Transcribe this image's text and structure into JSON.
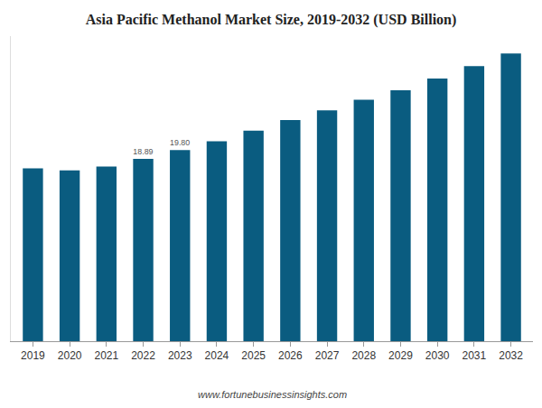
{
  "chart_data": {
    "type": "bar",
    "title": "Asia Pacific Methanol Market Size, 2019-2032 (USD Billion)",
    "categories": [
      "2019",
      "2020",
      "2021",
      "2022",
      "2023",
      "2024",
      "2025",
      "2026",
      "2027",
      "2028",
      "2029",
      "2030",
      "2031",
      "2032"
    ],
    "values": [
      17.9,
      17.7,
      18.1,
      18.89,
      19.8,
      20.7,
      21.8,
      22.9,
      23.9,
      25.0,
      26.0,
      27.2,
      28.5,
      29.8
    ],
    "value_labels": [
      null,
      null,
      null,
      "18.89",
      "19.80",
      null,
      null,
      null,
      null,
      null,
      null,
      null,
      null,
      null
    ],
    "data_labels": true,
    "color": "#0a5c80",
    "ylim": [
      0,
      31.6
    ],
    "yticks": [],
    "grid": false,
    "tick_labels": "x",
    "annotations": [
      "www.fortunebusinessinsights.com"
    ]
  }
}
